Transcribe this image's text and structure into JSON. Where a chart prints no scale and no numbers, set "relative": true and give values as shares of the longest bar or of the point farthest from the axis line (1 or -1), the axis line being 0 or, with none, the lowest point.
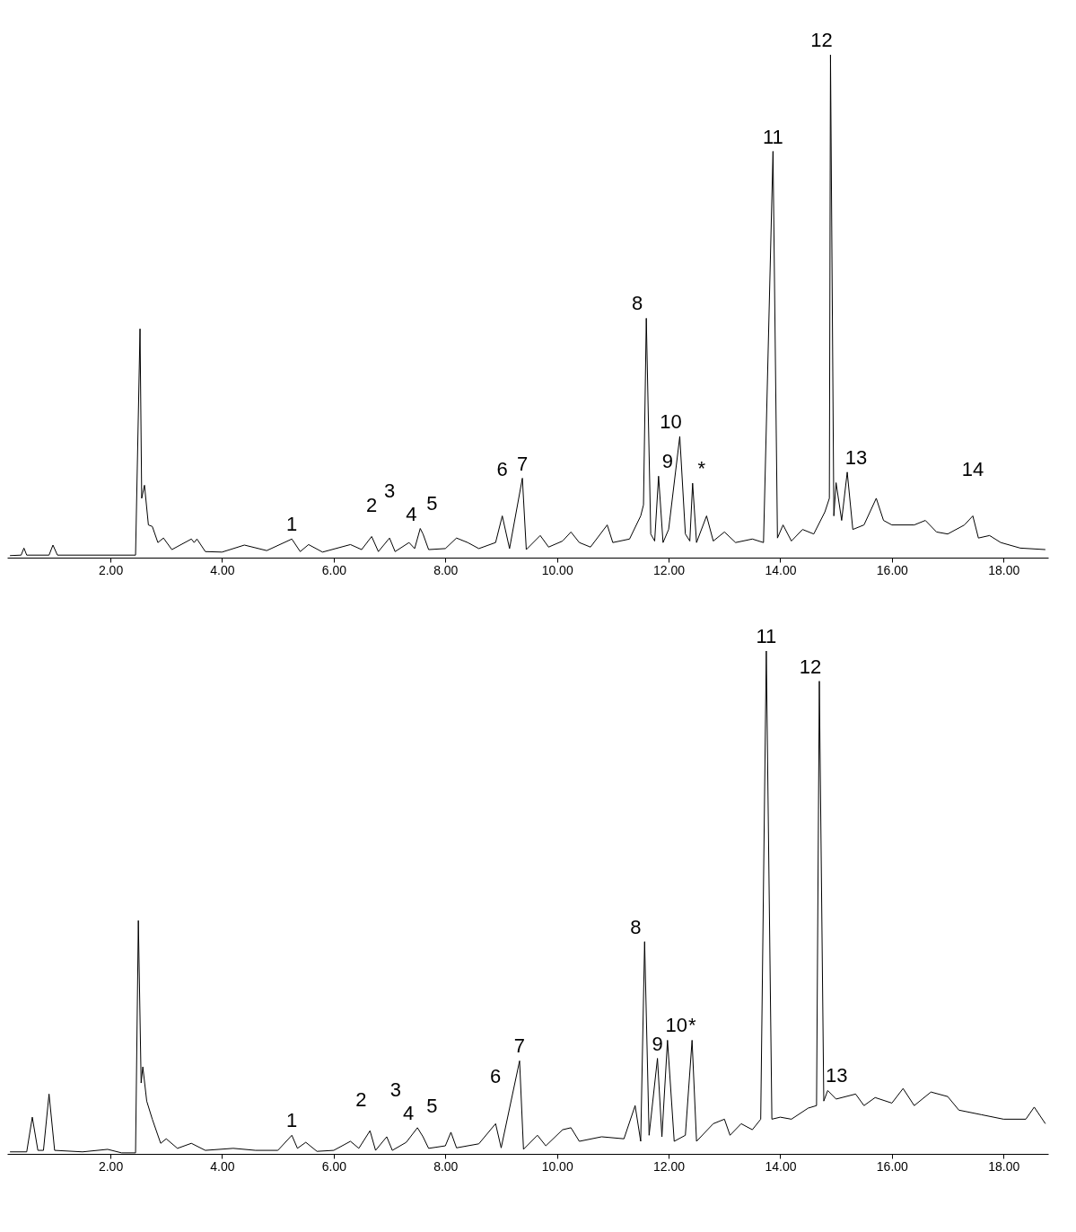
{
  "chart_data": [
    {
      "type": "line",
      "relative": true,
      "grid": false,
      "xlim": [
        0.15,
        18.8
      ],
      "xticks": [
        {
          "value": 2,
          "label": "2.00"
        },
        {
          "value": 4,
          "label": "4.00"
        },
        {
          "value": 6,
          "label": "6.00"
        },
        {
          "value": 8,
          "label": "8.00"
        },
        {
          "value": 10,
          "label": "10.00"
        },
        {
          "value": 12,
          "label": "12.00"
        },
        {
          "value": 14,
          "label": "14.00"
        },
        {
          "value": 16,
          "label": "16.00"
        },
        {
          "value": 18,
          "label": "18.00"
        }
      ],
      "x": [
        0.2,
        0.4,
        0.45,
        0.5,
        0.9,
        0.97,
        1.05,
        2.45,
        2.53,
        2.56,
        2.61,
        2.68,
        2.75,
        2.85,
        2.95,
        3.1,
        3.45,
        3.5,
        3.55,
        3.7,
        4.0,
        4.4,
        4.8,
        5.25,
        5.4,
        5.55,
        5.8,
        6.3,
        6.5,
        6.68,
        6.8,
        7.0,
        7.1,
        7.35,
        7.45,
        7.55,
        7.6,
        7.7,
        8.0,
        8.2,
        8.4,
        8.6,
        8.9,
        9.02,
        9.15,
        9.38,
        9.45,
        9.7,
        9.85,
        10.1,
        10.25,
        10.4,
        10.6,
        10.9,
        11.0,
        11.3,
        11.5,
        11.55,
        11.6,
        11.68,
        11.75,
        11.82,
        11.9,
        12.0,
        12.2,
        12.3,
        12.38,
        12.43,
        12.5,
        12.68,
        12.8,
        13.0,
        13.2,
        13.5,
        13.7,
        13.87,
        13.95,
        14.05,
        14.2,
        14.4,
        14.6,
        14.8,
        14.88,
        14.9,
        14.96,
        15.0,
        15.1,
        15.2,
        15.3,
        15.5,
        15.72,
        15.85,
        16.0,
        16.4,
        16.6,
        16.8,
        17.0,
        17.3,
        17.45,
        17.55,
        17.75,
        17.95,
        18.3,
        18.75
      ],
      "series": [
        {
          "color": "#000000",
          "values": [
            0.004,
            0.005,
            0.019,
            0.005,
            0.005,
            0.025,
            0.005,
            0.005,
            0.455,
            0.118,
            0.144,
            0.065,
            0.062,
            0.03,
            0.039,
            0.016,
            0.037,
            0.03,
            0.037,
            0.012,
            0.011,
            0.025,
            0.014,
            0.037,
            0.012,
            0.026,
            0.011,
            0.026,
            0.016,
            0.042,
            0.012,
            0.039,
            0.012,
            0.03,
            0.018,
            0.058,
            0.047,
            0.016,
            0.018,
            0.039,
            0.03,
            0.018,
            0.03,
            0.083,
            0.018,
            0.158,
            0.016,
            0.044,
            0.021,
            0.033,
            0.051,
            0.03,
            0.021,
            0.065,
            0.03,
            0.037,
            0.083,
            0.105,
            0.476,
            0.047,
            0.033,
            0.162,
            0.03,
            0.056,
            0.241,
            0.047,
            0.033,
            0.148,
            0.03,
            0.083,
            0.033,
            0.051,
            0.03,
            0.037,
            0.03,
            0.808,
            0.039,
            0.065,
            0.033,
            0.056,
            0.047,
            0.091,
            0.118,
            1,
            0.083,
            0.149,
            0.074,
            0.17,
            0.056,
            0.065,
            0.118,
            0.074,
            0.065,
            0.065,
            0.074,
            0.051,
            0.047,
            0.065,
            0.083,
            0.039,
            0.044,
            0.03,
            0.019,
            0.016
          ]
        }
      ],
      "annotations": [
        {
          "text": "1",
          "x": 5.25,
          "y": 0.037
        },
        {
          "text": "2",
          "x": 6.68,
          "y": 0.042
        },
        {
          "text": "3",
          "x": 7.0,
          "y": 0.039
        },
        {
          "text": "4",
          "x": 7.55,
          "y": 0.058
        },
        {
          "text": "5",
          "x": 7.6,
          "y": 0.047
        },
        {
          "text": "6",
          "x": 9.02,
          "y": 0.083
        },
        {
          "text": "7",
          "x": 9.38,
          "y": 0.158
        },
        {
          "text": "8",
          "x": 11.6,
          "y": 0.476
        },
        {
          "text": "9",
          "x": 11.82,
          "y": 0.162
        },
        {
          "text": "10",
          "x": 12.2,
          "y": 0.241
        },
        {
          "text": "*",
          "x": 12.43,
          "y": 0.148
        },
        {
          "text": "11",
          "x": 13.87,
          "y": 0.808
        },
        {
          "text": "12",
          "x": 14.9,
          "y": 1
        },
        {
          "text": "13",
          "x": 15.2,
          "y": 0.17
        },
        {
          "text": "14",
          "x": 17.45,
          "y": 0.083
        }
      ]
    },
    {
      "type": "line",
      "relative": true,
      "grid": false,
      "xlim": [
        0.15,
        18.8
      ],
      "xticks": [
        {
          "value": 2,
          "label": "2.00"
        },
        {
          "value": 4,
          "label": "4.00"
        },
        {
          "value": 6,
          "label": "6.00"
        },
        {
          "value": 8,
          "label": "8.00"
        },
        {
          "value": 10,
          "label": "10.00"
        },
        {
          "value": 12,
          "label": "12.00"
        },
        {
          "value": 14,
          "label": "14.00"
        },
        {
          "value": 16,
          "label": "16.00"
        },
        {
          "value": 18,
          "label": "18.00"
        }
      ],
      "x": [
        0.2,
        0.5,
        0.6,
        0.7,
        0.8,
        0.9,
        1.0,
        1.5,
        1.95,
        2.2,
        2.45,
        2.5,
        2.55,
        2.58,
        2.65,
        2.75,
        2.9,
        3.0,
        3.2,
        3.45,
        3.7,
        4.2,
        4.6,
        5.0,
        5.25,
        5.35,
        5.5,
        5.7,
        6.0,
        6.3,
        6.45,
        6.65,
        6.75,
        6.95,
        7.05,
        7.3,
        7.5,
        7.6,
        7.7,
        8.0,
        8.1,
        8.2,
        8.6,
        8.9,
        9.0,
        9.33,
        9.4,
        9.65,
        9.8,
        10.1,
        10.25,
        10.4,
        10.8,
        11.2,
        11.4,
        11.5,
        11.57,
        11.65,
        11.8,
        11.88,
        11.98,
        12.1,
        12.3,
        12.42,
        12.5,
        12.8,
        13.0,
        13.1,
        13.3,
        13.5,
        13.65,
        13.75,
        13.85,
        14.0,
        14.2,
        14.5,
        14.65,
        14.7,
        14.78,
        14.85,
        15.0,
        15.35,
        15.5,
        15.7,
        16.0,
        16.2,
        16.4,
        16.7,
        17.0,
        17.2,
        17.6,
        18.0,
        18.4,
        18.55,
        18.75
      ],
      "series": [
        {
          "color": "#000000",
          "values": [
            0.004,
            0.004,
            0.073,
            0.007,
            0.007,
            0.119,
            0.007,
            0.004,
            0.009,
            0.002,
            0.002,
            0.464,
            0.141,
            0.173,
            0.105,
            0.069,
            0.021,
            0.03,
            0.011,
            0.021,
            0.007,
            0.011,
            0.007,
            0.007,
            0.037,
            0.011,
            0.023,
            0.005,
            0.007,
            0.025,
            0.011,
            0.046,
            0.007,
            0.034,
            0.007,
            0.023,
            0.052,
            0.034,
            0.011,
            0.016,
            0.043,
            0.012,
            0.02,
            0.06,
            0.012,
            0.185,
            0.009,
            0.037,
            0.016,
            0.048,
            0.052,
            0.025,
            0.034,
            0.03,
            0.096,
            0.025,
            0.422,
            0.037,
            0.19,
            0.034,
            0.226,
            0.025,
            0.037,
            0.226,
            0.025,
            0.06,
            0.069,
            0.037,
            0.06,
            0.048,
            0.069,
            1,
            0.069,
            0.073,
            0.069,
            0.091,
            0.096,
            0.94,
            0.105,
            0.126,
            0.109,
            0.119,
            0.096,
            0.112,
            0.101,
            0.13,
            0.096,
            0.123,
            0.114,
            0.087,
            0.078,
            0.069,
            0.069,
            0.093,
            0.06
          ]
        }
      ],
      "annotations": [
        {
          "text": "1",
          "x": 5.25,
          "y": 0.037
        },
        {
          "text": "2",
          "x": 6.65,
          "y": 0.046
        },
        {
          "text": "3",
          "x": 6.95,
          "y": 0.034
        },
        {
          "text": "4",
          "x": 7.5,
          "y": 0.052
        },
        {
          "text": "5",
          "x": 7.6,
          "y": 0.034
        },
        {
          "text": "6",
          "x": 8.9,
          "y": 0.06
        },
        {
          "text": "7",
          "x": 9.33,
          "y": 0.185
        },
        {
          "text": "8",
          "x": 11.57,
          "y": 0.422
        },
        {
          "text": "9",
          "x": 11.8,
          "y": 0.19
        },
        {
          "text": "10",
          "x": 11.98,
          "y": 0.226
        },
        {
          "text": "*",
          "x": 12.42,
          "y": 0.226
        },
        {
          "text": "11",
          "x": 13.75,
          "y": 1
        },
        {
          "text": "12",
          "x": 14.7,
          "y": 0.94
        },
        {
          "text": "13",
          "x": 14.85,
          "y": 0.126
        }
      ]
    }
  ]
}
